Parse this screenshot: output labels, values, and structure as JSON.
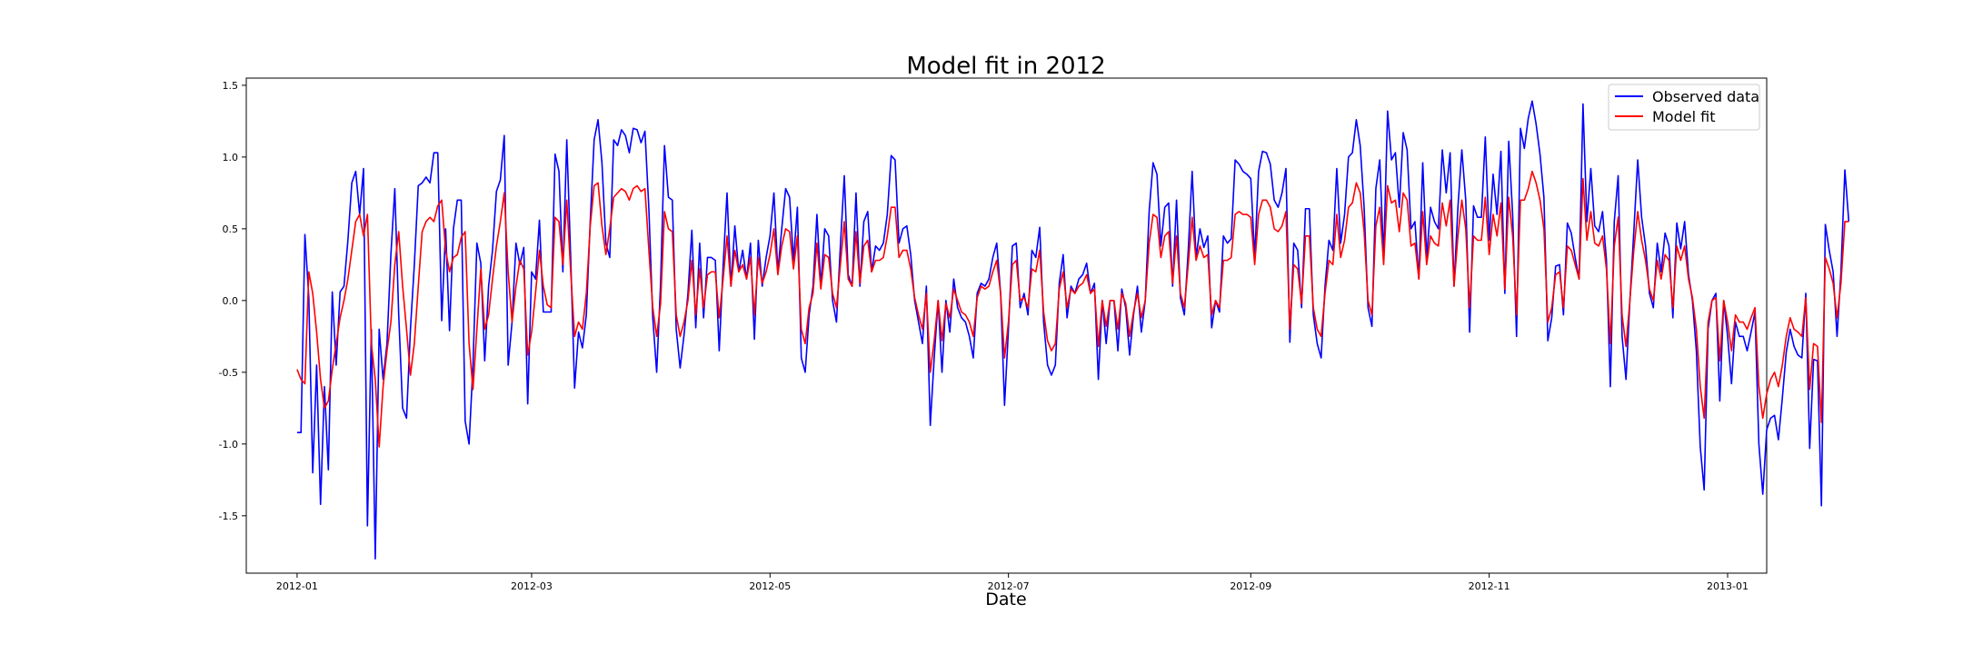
{
  "chart_data": {
    "type": "line",
    "title": "Model fit in 2012",
    "xlabel": "Date",
    "ylabel": "",
    "x_start": "2012-01-01",
    "x_end": "2012-12-29",
    "xlim": [
      "2011-12-19",
      "2013-01-11"
    ],
    "ylim": [
      -1.9,
      1.55
    ],
    "xticks": [
      "2012-01",
      "2012-03",
      "2012-05",
      "2012-07",
      "2012-09",
      "2012-11",
      "2013-01"
    ],
    "yticks": [
      "1.5",
      "1.0",
      "0.5",
      "0.0",
      "-0.5",
      "-1.0",
      "-1.5"
    ],
    "ytick_values": [
      1.5,
      1.0,
      0.5,
      0.0,
      -0.5,
      -1.0,
      -1.5
    ],
    "grid": false,
    "legend_position": "top-right",
    "series": [
      {
        "name": "Observed data",
        "color": "#0000ff",
        "values": [
          -0.92,
          -0.92,
          0.46,
          0.02,
          -1.2,
          -0.45,
          -1.42,
          -0.6,
          -1.18,
          0.06,
          -0.45,
          0.06,
          0.1,
          0.42,
          0.82,
          0.9,
          0.6,
          0.92,
          -1.57,
          -0.2,
          -1.8,
          -0.2,
          -0.55,
          -0.3,
          0.32,
          0.78,
          -0.1,
          -0.75,
          -0.82,
          -0.2,
          0.25,
          0.8,
          0.82,
          0.86,
          0.82,
          1.03,
          1.03,
          -0.14,
          0.5,
          -0.21,
          0.5,
          0.7,
          0.7,
          -0.84,
          -1.0,
          -0.45,
          0.4,
          0.26,
          -0.42,
          0.1,
          0.35,
          0.76,
          0.84,
          1.15,
          -0.45,
          -0.15,
          0.4,
          0.25,
          0.37,
          -0.72,
          0.2,
          0.15,
          0.56,
          -0.08,
          -0.08,
          -0.08,
          1.02,
          0.9,
          0.2,
          1.12,
          0.3,
          -0.61,
          -0.22,
          -0.33,
          -0.1,
          0.55,
          1.12,
          1.26,
          0.96,
          0.4,
          0.3,
          1.12,
          1.08,
          1.19,
          1.15,
          1.03,
          1.2,
          1.19,
          1.1,
          1.18,
          0.64,
          -0.12,
          -0.5,
          0.12,
          1.08,
          0.72,
          0.7,
          -0.2,
          -0.47,
          -0.24,
          0.05,
          0.49,
          -0.19,
          0.4,
          -0.12,
          0.3,
          0.3,
          0.28,
          -0.35,
          0.24,
          0.75,
          0.1,
          0.52,
          0.2,
          0.35,
          0.15,
          0.4,
          -0.27,
          0.42,
          0.1,
          0.3,
          0.45,
          0.75,
          0.2,
          0.5,
          0.78,
          0.72,
          0.28,
          0.65,
          -0.4,
          -0.5,
          -0.1,
          0.1,
          0.6,
          0.1,
          0.5,
          0.45,
          0.0,
          -0.15,
          0.38,
          0.87,
          0.18,
          0.1,
          0.75,
          0.1,
          0.55,
          0.62,
          0.2,
          0.38,
          0.35,
          0.4,
          0.6,
          1.01,
          0.98,
          0.4,
          0.5,
          0.52,
          0.32,
          0.0,
          -0.15,
          -0.3,
          0.1,
          -0.87,
          -0.4,
          0.0,
          -0.5,
          0.0,
          -0.22,
          0.15,
          -0.05,
          -0.12,
          -0.15,
          -0.25,
          -0.4,
          0.05,
          0.12,
          0.1,
          0.15,
          0.3,
          0.4,
          0.05,
          -0.73,
          -0.2,
          0.38,
          0.4,
          -0.05,
          0.05,
          -0.1,
          0.35,
          0.3,
          0.51,
          -0.15,
          -0.45,
          -0.52,
          -0.45,
          0.12,
          0.32,
          -0.12,
          0.1,
          0.05,
          0.15,
          0.18,
          0.26,
          0.05,
          0.12,
          -0.55,
          0.0,
          -0.3,
          0.0,
          0.0,
          -0.35,
          0.08,
          -0.05,
          -0.38,
          -0.1,
          0.1,
          -0.22,
          0.0,
          0.62,
          0.96,
          0.88,
          0.38,
          0.65,
          0.68,
          0.1,
          0.7,
          0.02,
          -0.1,
          0.35,
          0.9,
          0.3,
          0.5,
          0.37,
          0.45,
          -0.19,
          0.0,
          -0.08,
          0.45,
          0.4,
          0.43,
          0.98,
          0.95,
          0.9,
          0.88,
          0.85,
          0.3,
          0.9,
          1.04,
          1.03,
          0.95,
          0.7,
          0.65,
          0.75,
          0.92,
          -0.29,
          0.4,
          0.35,
          -0.05,
          0.64,
          0.64,
          -0.1,
          -0.3,
          -0.4,
          0.1,
          0.42,
          0.35,
          0.92,
          0.4,
          0.6,
          1.0,
          1.03,
          1.26,
          1.08,
          0.65,
          -0.05,
          -0.18,
          0.78,
          0.98,
          0.3,
          1.32,
          0.98,
          1.03,
          0.65,
          1.17,
          1.05,
          0.5,
          0.55,
          0.15,
          0.96,
          0.3,
          0.65,
          0.55,
          0.5,
          1.05,
          0.75,
          1.03,
          0.1,
          0.65,
          1.05,
          0.7,
          -0.22,
          0.66,
          0.58,
          0.58,
          1.14,
          0.42,
          0.88,
          0.6,
          1.04,
          0.05,
          1.11,
          0.6,
          -0.25,
          1.2,
          1.06,
          1.27,
          1.39,
          1.23,
          1.02,
          0.72,
          -0.28,
          -0.12,
          0.24,
          0.25,
          -0.1,
          0.54,
          0.47,
          0.3,
          0.15,
          1.37,
          0.55,
          0.92,
          0.52,
          0.48,
          0.62,
          0.28,
          -0.6,
          0.55,
          0.87,
          -0.25,
          -0.55,
          0.0,
          0.48,
          0.98,
          0.58,
          0.38,
          0.05,
          -0.05,
          0.4,
          0.2,
          0.47,
          0.38,
          -0.12,
          0.54,
          0.36,
          0.55,
          0.18,
          0.0,
          -0.35,
          -1.02,
          -1.32,
          -0.2,
          0.0,
          0.05,
          -0.7,
          0.0,
          -0.25,
          -0.58,
          -0.15,
          -0.25,
          -0.25,
          -0.35,
          -0.22,
          -0.08,
          -1.0,
          -1.35,
          -0.9,
          -0.82,
          -0.8,
          -0.97,
          -0.68,
          -0.36,
          -0.2,
          -0.32,
          -0.38,
          -0.4,
          0.05,
          -1.03,
          -0.41,
          -0.42,
          -1.43,
          0.53,
          0.35,
          0.2,
          -0.25,
          0.2,
          0.91,
          0.55
        ]
      },
      {
        "name": "Model fit",
        "color": "#ff0000",
        "values": [
          -0.48,
          -0.55,
          -0.58,
          0.2,
          0.05,
          -0.22,
          -0.55,
          -0.75,
          -0.7,
          -0.48,
          -0.3,
          -0.12,
          0.0,
          0.15,
          0.35,
          0.55,
          0.6,
          0.45,
          0.6,
          -0.3,
          -0.55,
          -1.02,
          -0.6,
          -0.35,
          -0.15,
          0.25,
          0.48,
          0.1,
          -0.2,
          -0.52,
          -0.3,
          0.1,
          0.48,
          0.55,
          0.58,
          0.55,
          0.66,
          0.7,
          0.35,
          0.2,
          0.3,
          0.32,
          0.44,
          0.48,
          -0.3,
          -0.62,
          -0.2,
          0.22,
          -0.2,
          -0.1,
          0.15,
          0.38,
          0.55,
          0.75,
          0.2,
          -0.15,
          0.1,
          0.28,
          0.22,
          -0.38,
          -0.22,
          0.05,
          0.35,
          0.1,
          -0.03,
          -0.05,
          0.58,
          0.55,
          0.25,
          0.7,
          0.2,
          -0.25,
          -0.15,
          -0.2,
          0.05,
          0.52,
          0.8,
          0.82,
          0.52,
          0.32,
          0.5,
          0.72,
          0.75,
          0.78,
          0.76,
          0.7,
          0.78,
          0.8,
          0.76,
          0.78,
          0.35,
          -0.05,
          -0.25,
          -0.02,
          0.62,
          0.5,
          0.48,
          -0.1,
          -0.25,
          -0.15,
          0.0,
          0.28,
          -0.1,
          0.22,
          -0.05,
          0.18,
          0.2,
          0.2,
          -0.12,
          0.15,
          0.45,
          0.1,
          0.35,
          0.2,
          0.25,
          0.15,
          0.3,
          -0.1,
          0.3,
          0.12,
          0.2,
          0.32,
          0.5,
          0.18,
          0.38,
          0.5,
          0.48,
          0.22,
          0.45,
          -0.2,
          -0.3,
          -0.05,
          0.05,
          0.4,
          0.08,
          0.32,
          0.3,
          0.05,
          -0.05,
          0.25,
          0.55,
          0.15,
          0.1,
          0.48,
          0.12,
          0.38,
          0.42,
          0.2,
          0.28,
          0.28,
          0.3,
          0.45,
          0.65,
          0.65,
          0.3,
          0.35,
          0.35,
          0.22,
          0.02,
          -0.1,
          -0.2,
          0.05,
          -0.5,
          -0.28,
          0.0,
          -0.28,
          -0.02,
          -0.12,
          0.08,
          0.0,
          -0.08,
          -0.1,
          -0.15,
          -0.25,
          0.02,
          0.1,
          0.08,
          0.1,
          0.2,
          0.28,
          0.05,
          -0.4,
          -0.15,
          0.25,
          0.28,
          0.0,
          0.02,
          -0.05,
          0.22,
          0.2,
          0.35,
          -0.08,
          -0.28,
          -0.35,
          -0.3,
          0.08,
          0.2,
          -0.05,
          0.08,
          0.05,
          0.1,
          0.12,
          0.18,
          0.05,
          0.08,
          -0.32,
          0.0,
          -0.18,
          0.0,
          0.0,
          -0.2,
          0.05,
          -0.02,
          -0.25,
          -0.08,
          0.05,
          -0.12,
          0.0,
          0.4,
          0.6,
          0.58,
          0.3,
          0.45,
          0.48,
          0.12,
          0.45,
          0.05,
          -0.05,
          0.25,
          0.58,
          0.28,
          0.38,
          0.3,
          0.32,
          -0.1,
          0.0,
          -0.05,
          0.28,
          0.28,
          0.3,
          0.6,
          0.62,
          0.6,
          0.6,
          0.58,
          0.25,
          0.6,
          0.7,
          0.7,
          0.65,
          0.5,
          0.48,
          0.52,
          0.62,
          -0.2,
          0.25,
          0.22,
          -0.02,
          0.45,
          0.45,
          -0.05,
          -0.2,
          -0.25,
          0.05,
          0.28,
          0.25,
          0.6,
          0.3,
          0.42,
          0.65,
          0.68,
          0.82,
          0.75,
          0.48,
          0.0,
          -0.1,
          0.52,
          0.65,
          0.25,
          0.8,
          0.68,
          0.7,
          0.48,
          0.75,
          0.7,
          0.38,
          0.4,
          0.15,
          0.62,
          0.25,
          0.45,
          0.4,
          0.38,
          0.68,
          0.52,
          0.7,
          0.1,
          0.45,
          0.7,
          0.5,
          -0.05,
          0.45,
          0.42,
          0.42,
          0.72,
          0.32,
          0.6,
          0.45,
          0.68,
          0.08,
          0.72,
          0.45,
          -0.1,
          0.7,
          0.7,
          0.78,
          0.9,
          0.82,
          0.7,
          0.5,
          -0.15,
          -0.05,
          0.18,
          0.2,
          -0.05,
          0.38,
          0.35,
          0.25,
          0.15,
          0.85,
          0.42,
          0.62,
          0.4,
          0.38,
          0.45,
          0.22,
          -0.3,
          0.38,
          0.58,
          -0.1,
          -0.32,
          0.0,
          0.35,
          0.62,
          0.42,
          0.28,
          0.08,
          0.0,
          0.28,
          0.15,
          0.32,
          0.28,
          -0.05,
          0.38,
          0.28,
          0.38,
          0.15,
          0.02,
          -0.2,
          -0.6,
          -0.82,
          -0.15,
          0.0,
          0.02,
          -0.42,
          0.0,
          -0.15,
          -0.35,
          -0.1,
          -0.15,
          -0.15,
          -0.2,
          -0.12,
          -0.05,
          -0.6,
          -0.82,
          -0.65,
          -0.55,
          -0.5,
          -0.6,
          -0.45,
          -0.25,
          -0.12,
          -0.2,
          -0.22,
          -0.25,
          0.02,
          -0.62,
          -0.3,
          -0.32,
          -0.85,
          0.3,
          0.22,
          0.12,
          -0.12,
          0.12,
          0.55,
          0.55
        ]
      }
    ]
  }
}
